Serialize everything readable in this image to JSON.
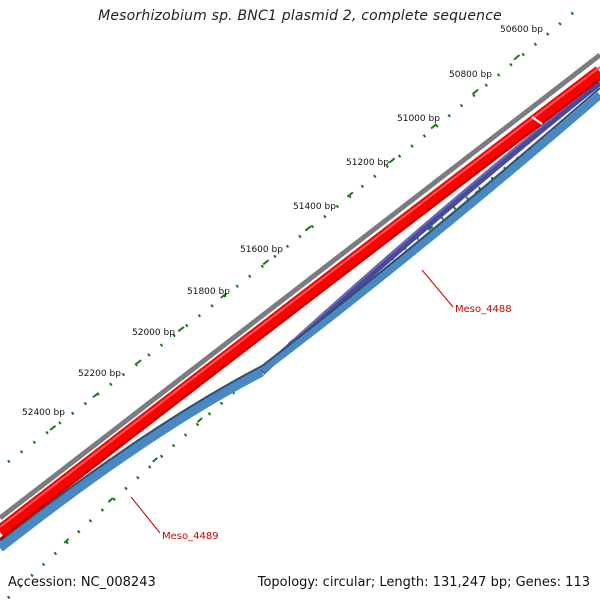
{
  "title": "Mesorhizobium sp. BNC1 plasmid 2, complete sequence",
  "footer": {
    "accession": "Accession: NC_008243",
    "summary": "Topology: circular; Length: 131,247 bp; Genes: 113"
  },
  "colors": {
    "backbone": "#7b7b80",
    "forward_strand": "#ff0000",
    "reverse_gene_light": "#4a88c2",
    "reverse_gene_dark": "#4a4a9a",
    "tick_green": "#1a7a1a",
    "label_red": "#cc0000"
  },
  "ticks": [
    {
      "label": "50600 bp"
    },
    {
      "label": "50800 bp"
    },
    {
      "label": "51000 bp"
    },
    {
      "label": "51200 bp"
    },
    {
      "label": "51400 bp"
    },
    {
      "label": "51600 bp"
    },
    {
      "label": "51800 bp"
    },
    {
      "label": "52000 bp"
    },
    {
      "label": "52200 bp"
    },
    {
      "label": "52400 bp"
    }
  ],
  "genes": [
    {
      "name": "Meso_4488"
    },
    {
      "name": "Meso_4489"
    }
  ]
}
